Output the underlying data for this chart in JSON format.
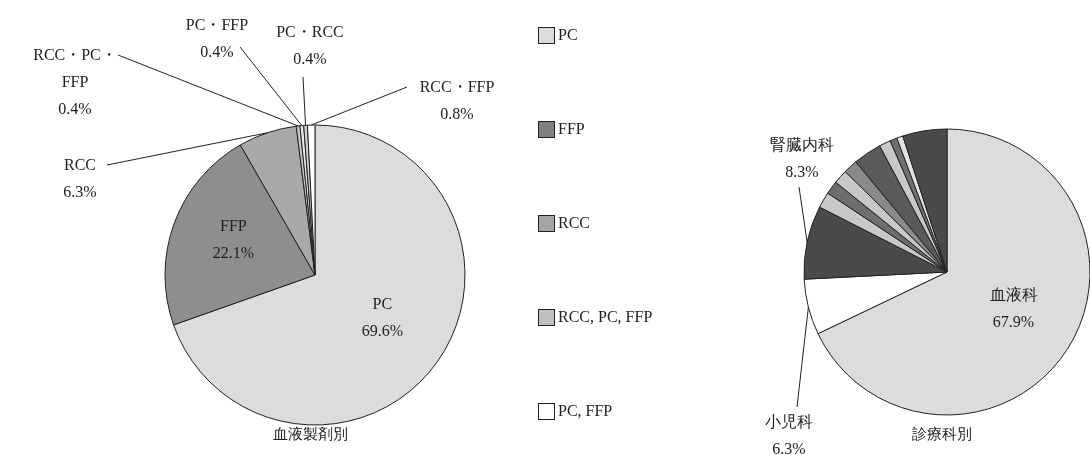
{
  "chart_data": [
    {
      "type": "pie",
      "title": "血液製剤別",
      "categories": [
        "PC",
        "FFP",
        "RCC",
        "RCC・PC・FFP",
        "PC・FFP",
        "PC・RCC",
        "RCC・FFP"
      ],
      "values": [
        69.6,
        22.1,
        6.3,
        0.4,
        0.4,
        0.4,
        0.8
      ],
      "value_labels": [
        "69.6%",
        "22.1%",
        "6.3%",
        "0.4%",
        "0.4%",
        "0.4%",
        "0.8%"
      ],
      "colors": [
        "#dcdcdc",
        "#8e8e8e",
        "#a9a9a9",
        "#c4c4c4",
        "#e6e6e6",
        "#d0d0d0",
        "#ffffff"
      ]
    },
    {
      "type": "other",
      "categories": [
        "PC",
        "FFP",
        "RCC",
        "RCC, PC, FFP",
        "PC, FFP"
      ],
      "colors": [
        "#dcdcdc",
        "#808080",
        "#a6a6a6",
        "#bfbfbf",
        "#ffffff"
      ]
    },
    {
      "type": "pie",
      "title": "診療科別",
      "categories": [
        "血液科",
        "小児科",
        "腎臓内科",
        null,
        null,
        null,
        null,
        null,
        null,
        null,
        null,
        null
      ],
      "values": [
        67.9,
        6.3,
        8.3,
        1.8,
        1.5,
        1.6,
        1.6,
        3.2,
        1.3,
        0.8,
        0.7,
        5.0
      ],
      "value_labels": [
        "67.9%",
        "6.3%",
        "8.3%",
        null,
        null,
        null,
        null,
        null,
        null,
        null,
        null,
        null
      ],
      "colors": [
        "#dcdcdc",
        "#ffffff",
        "#4a4a4a",
        "#c8c8c8",
        "#6e6e6e",
        "#c8c8c8",
        "#8a8a8a",
        "#5a5a5a",
        "#c8c8c8",
        "#707070",
        "#e4e4e4",
        "#4a4a4a"
      ]
    }
  ]
}
